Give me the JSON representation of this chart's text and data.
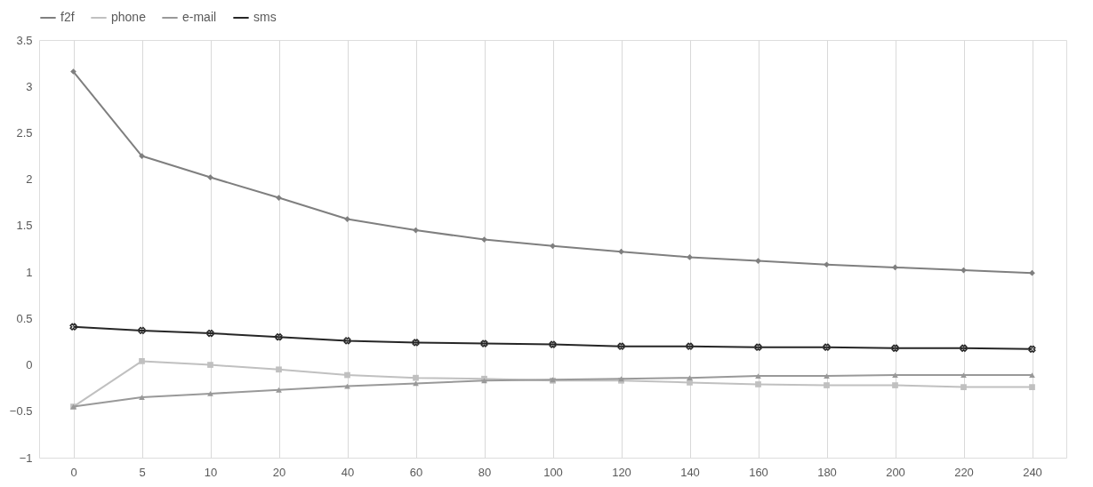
{
  "chart_data": {
    "type": "line",
    "categories": [
      "0",
      "5",
      "10",
      "20",
      "40",
      "60",
      "80",
      "100",
      "120",
      "140",
      "160",
      "180",
      "200",
      "220",
      "240"
    ],
    "series": [
      {
        "name": "f2f",
        "color": "#7f7f7f",
        "marker": "diamond",
        "values": [
          3.16,
          2.25,
          2.02,
          1.8,
          1.57,
          1.45,
          1.35,
          1.28,
          1.22,
          1.16,
          1.12,
          1.08,
          1.05,
          1.02,
          0.99
        ]
      },
      {
        "name": "phone",
        "color": "#c0c0c0",
        "marker": "square",
        "values": [
          -0.45,
          0.04,
          0.0,
          -0.05,
          -0.11,
          -0.14,
          -0.15,
          -0.17,
          -0.17,
          -0.19,
          -0.21,
          -0.22,
          -0.22,
          -0.24,
          -0.24
        ]
      },
      {
        "name": "e-mail",
        "color": "#999999",
        "marker": "triangle",
        "values": [
          -0.45,
          -0.35,
          -0.31,
          -0.27,
          -0.23,
          -0.2,
          -0.17,
          -0.16,
          -0.15,
          -0.14,
          -0.12,
          -0.12,
          -0.11,
          -0.11,
          -0.11
        ]
      },
      {
        "name": "sms",
        "color": "#262626",
        "marker": "cross",
        "values": [
          0.41,
          0.37,
          0.34,
          0.3,
          0.26,
          0.24,
          0.23,
          0.22,
          0.2,
          0.2,
          0.19,
          0.19,
          0.18,
          0.18,
          0.17
        ]
      }
    ],
    "ylim": [
      -1,
      3.5
    ],
    "yticks": [
      -1,
      -0.5,
      0,
      0.5,
      1,
      1.5,
      2,
      2.5,
      3,
      3.5
    ],
    "grid": "x",
    "legend": "top"
  }
}
